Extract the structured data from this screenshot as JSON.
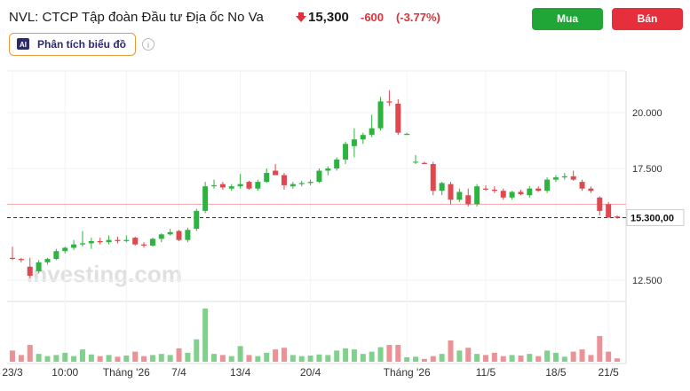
{
  "header": {
    "title": "NVL: CTCP Tập đoàn Đầu tư Địa ốc No Va",
    "price": "15,300",
    "change": "-600",
    "change_pct": "(-3.77%)",
    "buy": "Mua",
    "sell": "Bán",
    "analysis": "Phân tích biểu đồ",
    "ai": "AI",
    "watermark": "Investing.com"
  },
  "chart_data": {
    "type": "candlestick",
    "colors": {
      "up": "#2db33f",
      "down": "#e0474e"
    },
    "ylim": [
      11548,
      21865
    ],
    "yticks": [
      {
        "value": 12500,
        "label": "12.500"
      },
      {
        "value": 17500,
        "label": "17.500"
      },
      {
        "value": 20000,
        "label": "20.000"
      }
    ],
    "grid": true,
    "prev_close": 15900,
    "last_price": {
      "value": 15300,
      "label": "15.300,00"
    },
    "xticks": [
      {
        "value": 0,
        "label": "23/3"
      },
      {
        "value": 6,
        "label": "10:00"
      },
      {
        "value": 13,
        "label": "Tháng '26"
      },
      {
        "value": 19,
        "label": "7/4"
      },
      {
        "value": 26,
        "label": "13/4"
      },
      {
        "value": 34,
        "label": "20/4"
      },
      {
        "value": 45,
        "label": "Tháng '26"
      },
      {
        "value": 54,
        "label": "11/5"
      },
      {
        "value": 62,
        "label": "18/5"
      },
      {
        "value": 68,
        "label": "21/5"
      }
    ],
    "open": [
      13500,
      13450,
      13100,
      12900,
      13300,
      13450,
      13800,
      13950,
      14100,
      14150,
      14250,
      14200,
      14300,
      14250,
      14400,
      14100,
      14050,
      14350,
      14550,
      14700,
      14300,
      14800,
      15600,
      16700,
      16800,
      16600,
      16700,
      16900,
      16600,
      16900,
      17400,
      17200,
      16700,
      16800,
      16850,
      16900,
      17400,
      17500,
      17900,
      18500,
      18800,
      19000,
      19300,
      20500,
      20400,
      19000,
      17800,
      17750,
      17700,
      16500,
      16800,
      16100,
      16300,
      15900,
      16600,
      16550,
      16500,
      16200,
      16450,
      16300,
      16600,
      16500,
      17000,
      17100,
      17150,
      16900,
      16600,
      16200,
      15900,
      15350
    ],
    "high": [
      14000,
      13500,
      13500,
      13400,
      13500,
      13900,
      14000,
      14300,
      14700,
      14400,
      14400,
      14500,
      14450,
      14500,
      14450,
      14200,
      14400,
      14600,
      14800,
      14750,
      14850,
      15700,
      16900,
      17000,
      16900,
      16800,
      17250,
      16950,
      17000,
      17500,
      17700,
      17300,
      16900,
      16950,
      17000,
      17500,
      17600,
      18000,
      18700,
      19300,
      19100,
      19900,
      20700,
      21000,
      20600,
      19100,
      18100,
      17800,
      17800,
      16900,
      16900,
      16600,
      16600,
      16800,
      16750,
      16700,
      16600,
      16500,
      16550,
      16700,
      16700,
      17100,
      17200,
      17300,
      17400,
      17000,
      16700,
      16250,
      16000,
      15400
    ],
    "low": [
      13400,
      13300,
      12600,
      12800,
      13200,
      13400,
      13700,
      13850,
      14000,
      13900,
      14100,
      14100,
      14150,
      14200,
      14050,
      13950,
      14000,
      14200,
      14500,
      14250,
      14200,
      14700,
      15500,
      16600,
      16550,
      16500,
      16600,
      16550,
      16500,
      16850,
      17200,
      16550,
      16600,
      16700,
      16750,
      16850,
      17200,
      17400,
      17700,
      18000,
      18600,
      18900,
      19200,
      20300,
      19000,
      19050,
      17700,
      17700,
      16300,
      16300,
      15900,
      16000,
      15800,
      15800,
      16500,
      16400,
      16100,
      16100,
      16300,
      16200,
      16450,
      16400,
      16900,
      17000,
      16950,
      16500,
      16400,
      15400,
      15300,
      15250
    ],
    "close": [
      13450,
      13400,
      12700,
      13300,
      13450,
      13800,
      13950,
      14100,
      14150,
      14250,
      14200,
      14300,
      14250,
      14300,
      14100,
      14050,
      14350,
      14550,
      14650,
      14300,
      14750,
      15600,
      16700,
      16750,
      16650,
      16700,
      16800,
      16600,
      16900,
      17300,
      17200,
      16750,
      16800,
      16850,
      16900,
      17400,
      17500,
      17900,
      18600,
      18800,
      19000,
      19300,
      20500,
      20450,
      19100,
      19050,
      17800,
      17700,
      16500,
      16850,
      16100,
      16450,
      15900,
      16700,
      16550,
      16500,
      16200,
      16450,
      16350,
      16600,
      16500,
      17000,
      17100,
      17150,
      17000,
      16600,
      16500,
      15600,
      15300,
      15300
    ],
    "volume": [
      20,
      12,
      30,
      14,
      10,
      12,
      16,
      10,
      22,
      13,
      10,
      12,
      9,
      11,
      18,
      10,
      12,
      14,
      12,
      24,
      16,
      40,
      95,
      14,
      12,
      10,
      28,
      12,
      10,
      16,
      22,
      25,
      12,
      10,
      11,
      13,
      12,
      20,
      24,
      22,
      14,
      18,
      26,
      30,
      30,
      8,
      9,
      5,
      10,
      14,
      38,
      20,
      25,
      14,
      12,
      16,
      10,
      12,
      11,
      14,
      10,
      20,
      16,
      9,
      18,
      22,
      12,
      46,
      18,
      6
    ]
  }
}
